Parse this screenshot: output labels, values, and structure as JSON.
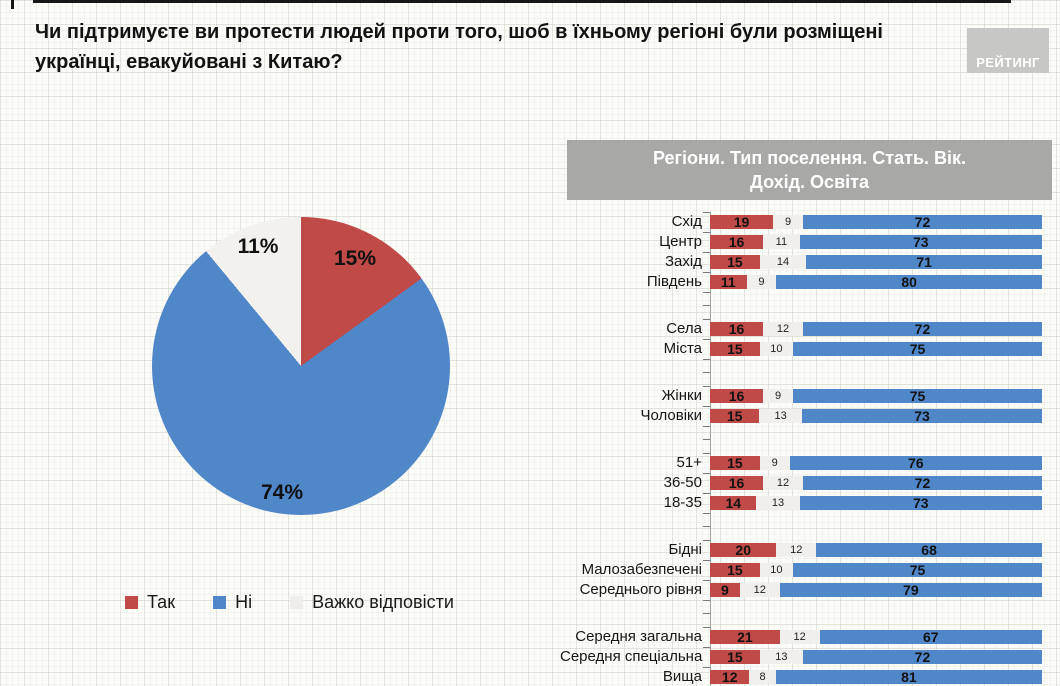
{
  "title": {
    "line1": "Чи підтримуєте ви протести людей проти того, шоб в їхньому регіоні були розміщені",
    "line2": "українці, евакуйовані з Китаю?"
  },
  "logo": {
    "text": "РЕЙТИНГ"
  },
  "pie_labels": {
    "yes": "15%",
    "no": "74%",
    "dk": "11%"
  },
  "legend": {
    "items": [
      {
        "label": "Так",
        "color": "#bf4a47"
      },
      {
        "label": "Ні",
        "color": "#5087c8"
      },
      {
        "label": "Важко відповісти",
        "color": "#eeedea"
      }
    ]
  },
  "breakdown_header": {
    "line1": "Регіони. Тип поселення. Стать. Вік.",
    "line2": "Дохід. Освіта"
  },
  "colors": {
    "yes": "#bf4a47",
    "no": "#5087c8",
    "dk": "#f0efec",
    "header_bg": "#a8a8a6",
    "logo_bg": "#c7c7c5",
    "background": "#fbfbf8"
  },
  "chart_data": [
    {
      "type": "pie",
      "title": "Чи підтримуєте ви протести людей проти того, шоб в їхньому регіоні були розміщені українці, евакуйовані з Китаю?",
      "labels": [
        "Так",
        "Ні",
        "Важко відповісти"
      ],
      "values": [
        15,
        74,
        11
      ],
      "colors": [
        "#bf4a47",
        "#5087c8",
        "#f2f1ee"
      ],
      "start_angle_deg": 0,
      "direction": "clockwise",
      "legend_position": "bottom"
    },
    {
      "type": "bar",
      "orientation": "horizontal",
      "stacked": true,
      "title": "Регіони. Тип поселення. Стать. Вік. Дохід. Освіта",
      "series": [
        "Так",
        "Важко відповісти",
        "Ні"
      ],
      "x_range": [
        0,
        100
      ],
      "grid": false,
      "groups": [
        {
          "categories": [
            "Схід",
            "Центр",
            "Захід",
            "Південь"
          ],
          "rows": [
            [
              19,
              9,
              72
            ],
            [
              16,
              11,
              73
            ],
            [
              15,
              14,
              71
            ],
            [
              11,
              9,
              80
            ]
          ]
        },
        {
          "categories": [
            "Села",
            "Міста"
          ],
          "rows": [
            [
              16,
              12,
              72
            ],
            [
              15,
              10,
              75
            ]
          ]
        },
        {
          "categories": [
            "Жінки",
            "Чоловіки"
          ],
          "rows": [
            [
              16,
              9,
              75
            ],
            [
              15,
              13,
              73
            ]
          ]
        },
        {
          "categories": [
            "51+",
            "36-50",
            "18-35"
          ],
          "rows": [
            [
              15,
              9,
              76
            ],
            [
              16,
              12,
              72
            ],
            [
              14,
              13,
              73
            ]
          ]
        },
        {
          "categories": [
            "Бідні",
            "Малозабезпечені",
            "Середнього рівня"
          ],
          "rows": [
            [
              20,
              12,
              68
            ],
            [
              15,
              10,
              75
            ],
            [
              9,
              12,
              79
            ]
          ]
        },
        {
          "categories": [
            "Середня загальна",
            "Середня спеціальна",
            "Вища"
          ],
          "rows": [
            [
              21,
              12,
              67
            ],
            [
              15,
              13,
              72
            ],
            [
              12,
              8,
              81
            ]
          ]
        }
      ]
    }
  ]
}
